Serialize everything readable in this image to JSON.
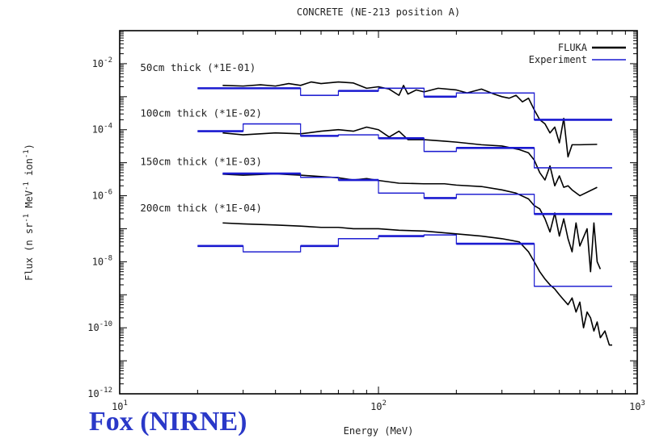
{
  "chart_data": {
    "type": "line",
    "title": "CONCRETE (NE-213 position A)",
    "xlabel": "Energy (MeV)",
    "ylabel": "Flux (n sr-1 MeV-1 ion-1)",
    "ylabel_parts": {
      "base": "Flux (n sr",
      "exp1": "-1",
      "mid": " MeV",
      "exp2": "-1",
      "mid2": " ion",
      "exp3": "-1",
      "end": ")"
    },
    "x_scale": "log",
    "y_scale": "log",
    "xlim": [
      10,
      1000
    ],
    "ylim": [
      1e-12,
      0.1
    ],
    "x_ticks": [
      {
        "value": 10,
        "base": "10",
        "exp": "1"
      },
      {
        "value": 100,
        "base": "10",
        "exp": "2"
      },
      {
        "value": 1000,
        "base": "10",
        "exp": "3"
      }
    ],
    "y_ticks": [
      {
        "value": 1e-12,
        "base": "10",
        "exp": "-12"
      },
      {
        "value": 1e-10,
        "base": "10",
        "exp": "-10"
      },
      {
        "value": 1e-08,
        "base": "10",
        "exp": "-8"
      },
      {
        "value": 1e-06,
        "base": "10",
        "exp": "-6"
      },
      {
        "value": 0.0001,
        "base": "10",
        "exp": "-4"
      },
      {
        "value": 0.01,
        "base": "10",
        "exp": "-2"
      }
    ],
    "legend_position": "top-right",
    "legend": [
      {
        "label": "FLUKA",
        "color": "#000000"
      },
      {
        "label": "Experiment",
        "color": "#1a1ad0"
      }
    ],
    "annotations": [
      {
        "text": "50cm thick (*1E-01)",
        "x": 12,
        "y": 0.006
      },
      {
        "text": "100cm thick (*1E-02)",
        "x": 12,
        "y": 0.00025
      },
      {
        "text": "150cm thick (*1E-03)",
        "x": 12,
        "y": 8.5e-06
      },
      {
        "text": "200cm thick (*1E-04)",
        "x": 12,
        "y": 3.3e-07
      }
    ],
    "series": [
      {
        "name": "FLUKA",
        "thickness": "50cm",
        "kind": "line",
        "color": "#000000",
        "points": [
          [
            25,
            0.0022
          ],
          [
            30,
            0.0021
          ],
          [
            35,
            0.0023
          ],
          [
            40,
            0.0021
          ],
          [
            45,
            0.0025
          ],
          [
            50,
            0.0022
          ],
          [
            55,
            0.0028
          ],
          [
            60,
            0.0025
          ],
          [
            70,
            0.0028
          ],
          [
            80,
            0.0026
          ],
          [
            90,
            0.0018
          ],
          [
            100,
            0.002
          ],
          [
            110,
            0.0017
          ],
          [
            120,
            0.0011
          ],
          [
            125,
            0.0022
          ],
          [
            130,
            0.0012
          ],
          [
            140,
            0.0016
          ],
          [
            150,
            0.0014
          ],
          [
            170,
            0.0018
          ],
          [
            200,
            0.0016
          ],
          [
            220,
            0.0013
          ],
          [
            250,
            0.0017
          ],
          [
            280,
            0.0012
          ],
          [
            300,
            0.001
          ],
          [
            320,
            0.0009
          ],
          [
            340,
            0.0011
          ],
          [
            360,
            0.0007
          ],
          [
            380,
            0.0009
          ],
          [
            400,
            0.0004
          ],
          [
            420,
            0.0002
          ],
          [
            440,
            0.00015
          ],
          [
            460,
            8e-05
          ],
          [
            480,
            0.00012
          ],
          [
            500,
            4e-05
          ],
          [
            520,
            0.00022
          ],
          [
            540,
            1.5e-05
          ],
          [
            560,
            3.5e-05
          ],
          [
            600,
            3.5e-05
          ],
          [
            700,
            3.6e-05
          ]
        ]
      },
      {
        "name": "Experiment",
        "thickness": "50cm",
        "kind": "step",
        "color": "#1a1ad0",
        "points": [
          [
            20,
            0.0018
          ],
          [
            50,
            0.0011
          ],
          [
            70,
            0.0015
          ],
          [
            100,
            0.0018
          ],
          [
            150,
            0.001
          ],
          [
            200,
            0.0013
          ],
          [
            400,
            0.0002
          ],
          [
            800,
            0.0002
          ]
        ]
      },
      {
        "name": "FLUKA",
        "thickness": "100cm",
        "kind": "line",
        "color": "#000000",
        "points": [
          [
            25,
            8e-05
          ],
          [
            30,
            7e-05
          ],
          [
            40,
            8e-05
          ],
          [
            50,
            7.5e-05
          ],
          [
            60,
            9e-05
          ],
          [
            70,
            0.0001
          ],
          [
            80,
            9e-05
          ],
          [
            90,
            0.00012
          ],
          [
            100,
            0.0001
          ],
          [
            110,
            6e-05
          ],
          [
            120,
            9e-05
          ],
          [
            130,
            5e-05
          ],
          [
            150,
            5e-05
          ],
          [
            180,
            4.5e-05
          ],
          [
            200,
            4.2e-05
          ],
          [
            250,
            3.5e-05
          ],
          [
            300,
            3.2e-05
          ],
          [
            350,
            2.5e-05
          ],
          [
            380,
            2e-05
          ],
          [
            400,
            1.2e-05
          ],
          [
            420,
            5e-06
          ],
          [
            440,
            3e-06
          ],
          [
            460,
            8e-06
          ],
          [
            480,
            2e-06
          ],
          [
            500,
            4e-06
          ],
          [
            520,
            1.8e-06
          ],
          [
            540,
            2e-06
          ],
          [
            560,
            1.5e-06
          ],
          [
            600,
            1e-06
          ],
          [
            700,
            1.8e-06
          ]
        ]
      },
      {
        "name": "Experiment",
        "thickness": "100cm",
        "kind": "step",
        "color": "#1a1ad0",
        "points": [
          [
            20,
            9e-05
          ],
          [
            30,
            0.00015
          ],
          [
            50,
            6.5e-05
          ],
          [
            70,
            7e-05
          ],
          [
            100,
            5.5e-05
          ],
          [
            150,
            2.2e-05
          ],
          [
            200,
            2.8e-05
          ],
          [
            400,
            7e-06
          ],
          [
            800,
            7e-06
          ]
        ]
      },
      {
        "name": "FLUKA",
        "thickness": "150cm",
        "kind": "line",
        "color": "#000000",
        "points": [
          [
            25,
            4.5e-06
          ],
          [
            30,
            4.2e-06
          ],
          [
            40,
            4.6e-06
          ],
          [
            50,
            4.2e-06
          ],
          [
            60,
            3.8e-06
          ],
          [
            70,
            3.5e-06
          ],
          [
            80,
            3e-06
          ],
          [
            90,
            3.3e-06
          ],
          [
            100,
            2.9e-06
          ],
          [
            120,
            2.4e-06
          ],
          [
            150,
            2.3e-06
          ],
          [
            180,
            2.3e-06
          ],
          [
            200,
            2.1e-06
          ],
          [
            250,
            1.9e-06
          ],
          [
            300,
            1.5e-06
          ],
          [
            340,
            1.2e-06
          ],
          [
            380,
            8e-07
          ],
          [
            400,
            5e-07
          ],
          [
            420,
            4e-07
          ],
          [
            440,
            2e-07
          ],
          [
            460,
            8e-08
          ],
          [
            480,
            3e-07
          ],
          [
            500,
            6e-08
          ],
          [
            520,
            2e-07
          ],
          [
            540,
            5e-08
          ],
          [
            560,
            2e-08
          ],
          [
            580,
            1.5e-07
          ],
          [
            600,
            3e-08
          ],
          [
            640,
            1e-07
          ],
          [
            660,
            5e-09
          ],
          [
            680,
            1.5e-07
          ],
          [
            700,
            1e-08
          ],
          [
            720,
            6e-09
          ]
        ]
      },
      {
        "name": "Experiment",
        "thickness": "150cm",
        "kind": "step",
        "color": "#1a1ad0",
        "points": [
          [
            25,
            4.7e-06
          ],
          [
            50,
            3.6e-06
          ],
          [
            70,
            3e-06
          ],
          [
            100,
            1.2e-06
          ],
          [
            150,
            8.5e-07
          ],
          [
            200,
            1.1e-06
          ],
          [
            400,
            2.8e-07
          ],
          [
            800,
            2.8e-07
          ]
        ]
      },
      {
        "name": "FLUKA",
        "thickness": "200cm",
        "kind": "line",
        "color": "#000000",
        "points": [
          [
            25,
            1.5e-07
          ],
          [
            30,
            1.4e-07
          ],
          [
            40,
            1.3e-07
          ],
          [
            50,
            1.2e-07
          ],
          [
            60,
            1.1e-07
          ],
          [
            70,
            1.1e-07
          ],
          [
            80,
            1e-07
          ],
          [
            100,
            1e-07
          ],
          [
            120,
            9e-08
          ],
          [
            150,
            8.5e-08
          ],
          [
            200,
            7e-08
          ],
          [
            250,
            6e-08
          ],
          [
            300,
            5e-08
          ],
          [
            350,
            4e-08
          ],
          [
            380,
            2e-08
          ],
          [
            400,
            1e-08
          ],
          [
            420,
            5e-09
          ],
          [
            440,
            3e-09
          ],
          [
            460,
            2e-09
          ],
          [
            480,
            1.5e-09
          ],
          [
            500,
            1e-09
          ],
          [
            520,
            7e-10
          ],
          [
            540,
            5e-10
          ],
          [
            560,
            8e-10
          ],
          [
            580,
            3e-10
          ],
          [
            600,
            6e-10
          ],
          [
            620,
            1e-10
          ],
          [
            640,
            3e-10
          ],
          [
            660,
            2e-10
          ],
          [
            680,
            8e-11
          ],
          [
            700,
            1.5e-10
          ],
          [
            720,
            5e-11
          ],
          [
            750,
            8e-11
          ],
          [
            780,
            3e-11
          ],
          [
            800,
            3e-11
          ]
        ]
      },
      {
        "name": "Experiment",
        "thickness": "200cm",
        "kind": "step",
        "color": "#1a1ad0",
        "points": [
          [
            20,
            3e-08
          ],
          [
            30,
            2e-08
          ],
          [
            50,
            3e-08
          ],
          [
            70,
            5e-08
          ],
          [
            100,
            6e-08
          ],
          [
            150,
            6.5e-08
          ],
          [
            200,
            3.5e-08
          ],
          [
            400,
            1.8e-09
          ],
          [
            800,
            1.8e-09
          ]
        ]
      }
    ]
  },
  "overlay_text": "Fox (NIRNE)"
}
